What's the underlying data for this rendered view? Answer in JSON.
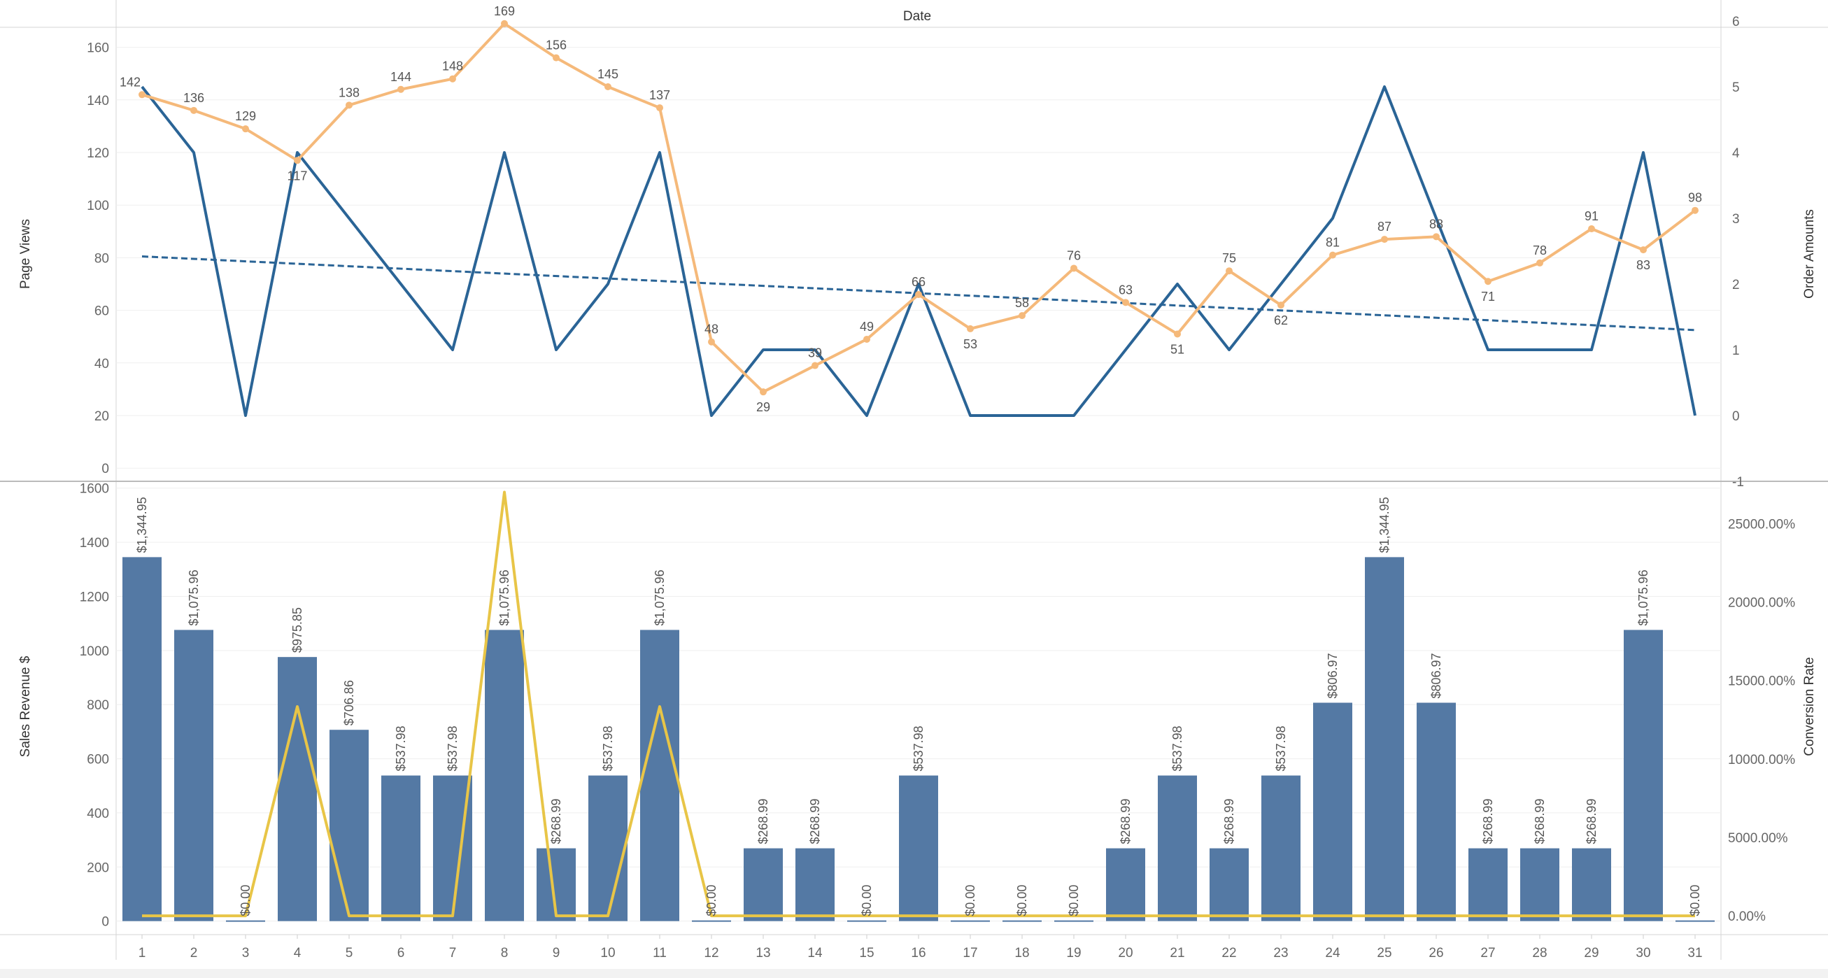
{
  "chart_data": [
    {
      "type": "line",
      "header": "Date",
      "x": [
        1,
        2,
        3,
        4,
        5,
        6,
        7,
        8,
        9,
        10,
        11,
        12,
        13,
        14,
        15,
        16,
        17,
        18,
        19,
        20,
        21,
        22,
        23,
        24,
        25,
        26,
        27,
        28,
        29,
        30,
        31
      ],
      "ylabel": "Page Views",
      "ylabel_right": "Order Amounts",
      "ylim": [
        -5,
        170
      ],
      "ylim_right": [
        -1,
        6
      ],
      "left_ticks": [
        0,
        20,
        40,
        60,
        80,
        100,
        120,
        140,
        160
      ],
      "right_ticks": [
        -1,
        0,
        1,
        2,
        3,
        4,
        5,
        6
      ],
      "series": [
        {
          "axis": "left",
          "color": "#f5b97a",
          "values": [
            142,
            136,
            129,
            117,
            138,
            144,
            148,
            169,
            156,
            145,
            137,
            48,
            29,
            39,
            49,
            66,
            53,
            58,
            76,
            63,
            51,
            75,
            62,
            81,
            87,
            88,
            71,
            78,
            91,
            83,
            98
          ],
          "labels": [
            "142",
            "136",
            "129",
            "117",
            "138",
            "144",
            "148",
            "169",
            "156",
            "145",
            "137",
            "48",
            "29",
            "39",
            "49",
            "66",
            "53",
            "58",
            "76",
            "63",
            "51",
            "75",
            "62",
            "81",
            "87",
            "88",
            "71",
            "78",
            "91",
            "83",
            "98"
          ]
        },
        {
          "axis": "right",
          "color": "#2a6496",
          "values": [
            5,
            4,
            0,
            4,
            3,
            2,
            1,
            4,
            1,
            2,
            4,
            0,
            1,
            1,
            0,
            2,
            0,
            0,
            0,
            1,
            2,
            1,
            2,
            3,
            5,
            3,
            1,
            1,
            1,
            4,
            0
          ],
          "trend_line": {
            "style": "dashed",
            "color": "#2a6496",
            "start": 2.42,
            "end": 1.3
          }
        }
      ],
      "grid": "horizontal"
    },
    {
      "type": "bar",
      "x": [
        1,
        2,
        3,
        4,
        5,
        6,
        7,
        8,
        9,
        10,
        11,
        12,
        13,
        14,
        15,
        16,
        17,
        18,
        19,
        20,
        21,
        22,
        23,
        24,
        25,
        26,
        27,
        28,
        29,
        30,
        31
      ],
      "ylabel": "Sales Revenue $",
      "ylabel_right": "Conversion Rate",
      "ylim": [
        -50,
        1620
      ],
      "ylim_right": [
        -1200,
        27600
      ],
      "left_ticks": [
        0,
        200,
        400,
        600,
        800,
        1000,
        1200,
        1400,
        1600
      ],
      "right_ticks": [
        0,
        5000,
        10000,
        15000,
        20000,
        25000
      ],
      "right_tick_labels": [
        "0.00%",
        "5000.00%",
        "10000.00%",
        "15000.00%",
        "20000.00%",
        "25000.00%"
      ],
      "bar_color": "#5479a4",
      "values": [
        1344.95,
        1075.96,
        0,
        975.85,
        706.86,
        537.98,
        537.98,
        1075.96,
        268.99,
        537.98,
        1075.96,
        0,
        268.99,
        268.99,
        0,
        537.98,
        0,
        0,
        0,
        268.99,
        537.98,
        268.99,
        537.98,
        806.97,
        1344.95,
        806.97,
        268.99,
        268.99,
        268.99,
        1075.96,
        0
      ],
      "labels": [
        "$1,344.95",
        "$1,075.96",
        "$0.00",
        "$975.85",
        "$706.86",
        "$537.98",
        "$537.98",
        "$1,075.96",
        "$268.99",
        "$537.98",
        "$1,075.96",
        "$0.00",
        "$268.99",
        "$268.99",
        "$0.00",
        "$537.98",
        "$0.00",
        "$0.00",
        "$0.00",
        "$268.99",
        "$537.98",
        "$268.99",
        "$537.98",
        "$806.97",
        "$1,344.95",
        "$806.97",
        "$268.99",
        "$268.99",
        "$268.99",
        "$1,075.96",
        "$0.00"
      ],
      "line_series": {
        "axis": "right",
        "color": "#e8c547",
        "values": [
          0,
          0,
          0,
          13333,
          0,
          0,
          0,
          27000,
          0,
          0,
          13333,
          0,
          0,
          0,
          0,
          0,
          0,
          0,
          0,
          0,
          0,
          0,
          0,
          0,
          0,
          0,
          0,
          0,
          0,
          0,
          0
        ]
      },
      "grid": "horizontal"
    }
  ]
}
